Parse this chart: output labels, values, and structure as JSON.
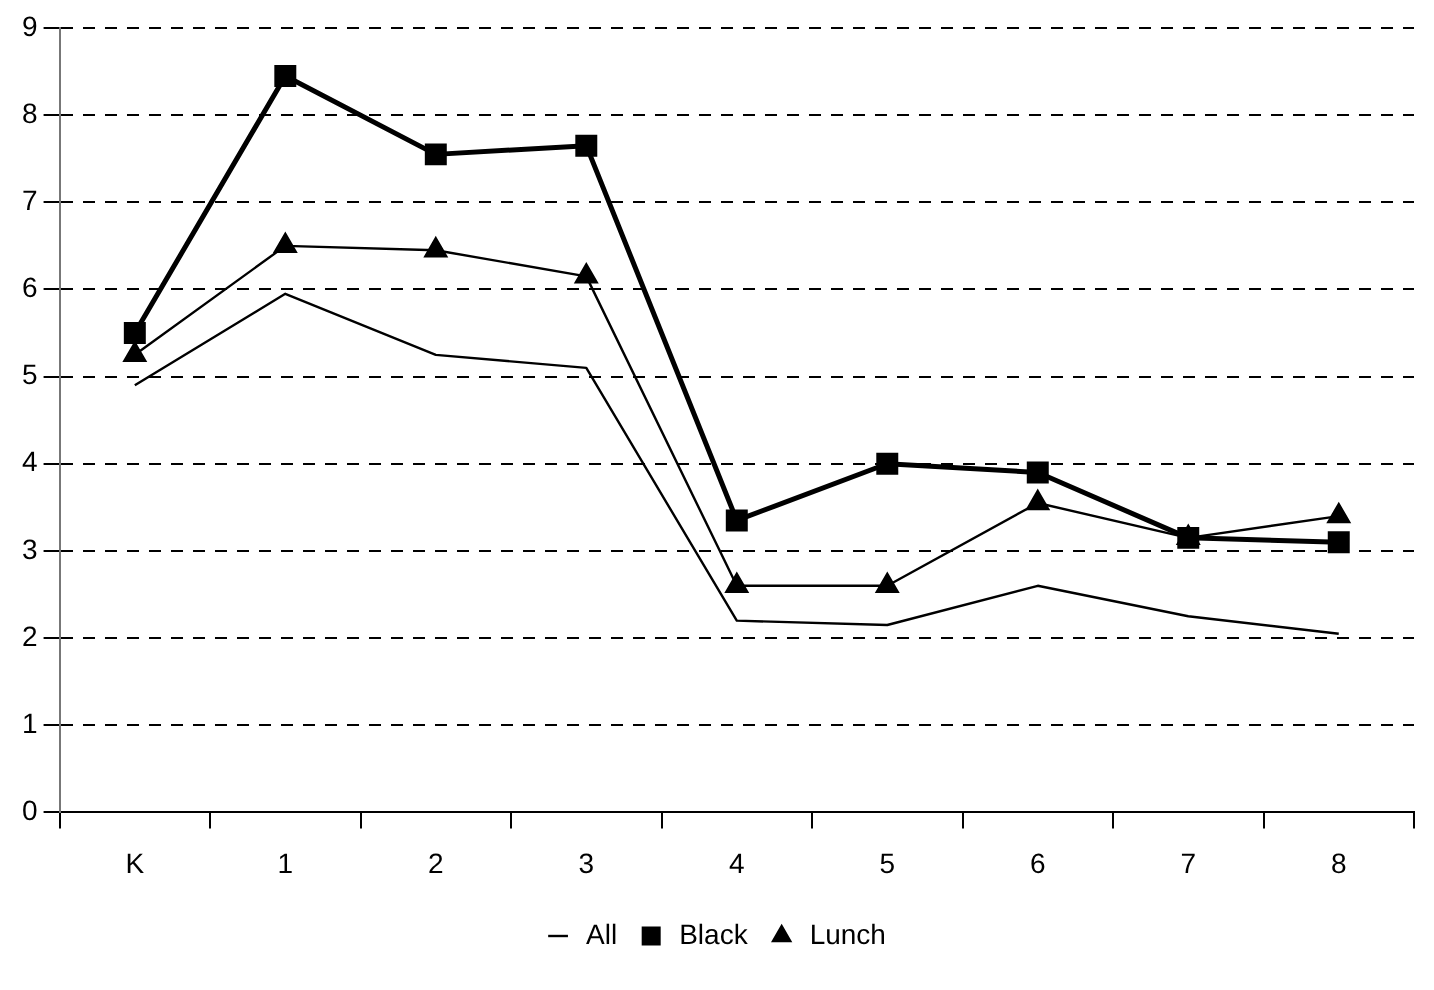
{
  "chart_data": {
    "type": "line",
    "categories": [
      "K",
      "1",
      "2",
      "3",
      "4",
      "5",
      "6",
      "7",
      "8"
    ],
    "ylim": [
      0,
      9
    ],
    "yticks": [
      0,
      1,
      2,
      3,
      4,
      5,
      6,
      7,
      8,
      9
    ],
    "grid": "y",
    "legend": "bottom",
    "line_style": "solid",
    "series": [
      {
        "name": "All",
        "color": "#000000",
        "marker": "none",
        "values": [
          4.9,
          5.95,
          5.25,
          5.1,
          2.2,
          2.15,
          2.6,
          2.25,
          2.05
        ]
      },
      {
        "name": "Black",
        "color": "#000000",
        "marker": "square",
        "values": [
          5.5,
          8.45,
          7.55,
          7.65,
          3.35,
          4.0,
          3.9,
          3.15,
          3.1
        ]
      },
      {
        "name": "Lunch",
        "color": "#000000",
        "marker": "triangle",
        "values": [
          5.25,
          6.5,
          6.45,
          6.15,
          2.6,
          2.6,
          3.55,
          3.15,
          3.4
        ]
      }
    ]
  }
}
